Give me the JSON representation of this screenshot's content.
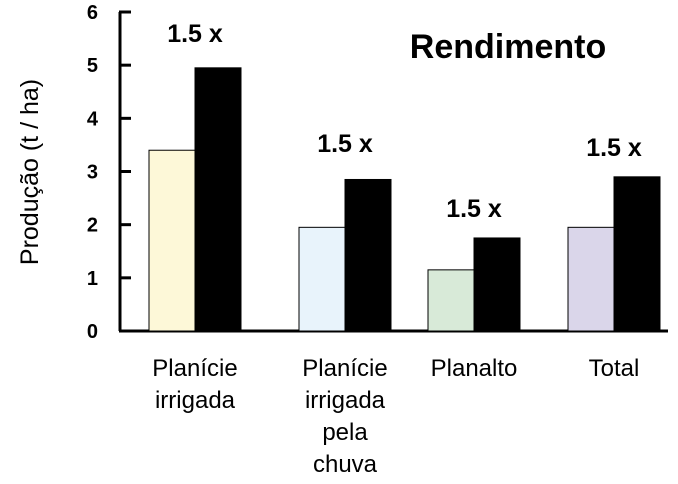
{
  "chart_data": {
    "type": "bar",
    "title": "Rendimento",
    "ylabel": "Produção (t / ha)",
    "xlabel": "",
    "ylim": [
      0,
      6
    ],
    "yticks": [
      "0",
      "1",
      "2",
      "3",
      "4",
      "5",
      "6"
    ],
    "grid": false,
    "legend": "none",
    "categories": [
      [
        "Planície",
        "irrigada"
      ],
      [
        "Planície",
        "irrigada",
        "pela",
        "chuva"
      ],
      [
        "Planalto"
      ],
      [
        "Total"
      ]
    ],
    "series": [
      {
        "values": [
          3.4,
          1.95,
          1.15,
          1.95
        ],
        "colors": [
          "#fdf8d8",
          "#e8f3fb",
          "#d8ead8",
          "#dad6ea"
        ]
      },
      {
        "values": [
          4.95,
          2.85,
          1.75,
          2.9
        ],
        "colors": [
          "#000000",
          "#000000",
          "#000000",
          "#000000"
        ]
      }
    ],
    "annotations": [
      "1.5 x",
      "1.5 x",
      "1.5 x",
      "1.5 x"
    ]
  }
}
